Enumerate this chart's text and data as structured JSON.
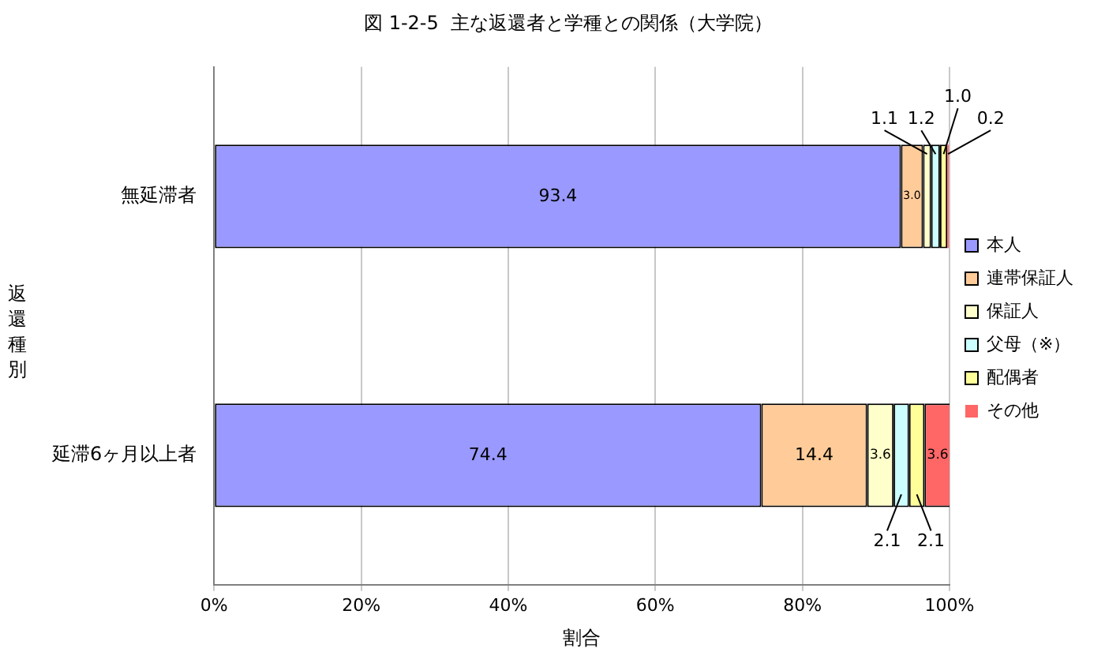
{
  "chart_data": {
    "type": "bar",
    "orientation": "horizontal",
    "stacked": true,
    "title": "図 1-2-5  主な返還者と学種との関係（大学院）",
    "xlabel": "割合",
    "ylabel": "返還種別",
    "categories": [
      "無延滞者",
      "延滞6ヶ月以上者"
    ],
    "series": [
      {
        "name": "本人",
        "color": "#9999ff",
        "values": [
          93.4,
          74.4
        ],
        "value_labels": [
          "93.4",
          "74.4"
        ]
      },
      {
        "name": "連帯保証人",
        "color": "#ffcc99",
        "values": [
          3.0,
          14.4
        ],
        "value_labels": [
          "3.0",
          "14.4"
        ]
      },
      {
        "name": "保証人",
        "color": "#ffffcc",
        "values": [
          1.1,
          3.6
        ],
        "value_labels": [
          "1.1",
          "3.6"
        ]
      },
      {
        "name": "父母（※）",
        "color": "#ccffff",
        "values": [
          1.2,
          2.1
        ],
        "value_labels": [
          "1.2",
          "2.1"
        ]
      },
      {
        "name": "配偶者",
        "color": "#ffff99",
        "values": [
          1.0,
          2.1
        ],
        "value_labels": [
          "1.0",
          "2.1"
        ]
      },
      {
        "name": "その他",
        "color": "#ff6666",
        "values": [
          0.2,
          3.6
        ],
        "value_labels": [
          "0.2",
          "3.6"
        ]
      }
    ],
    "xlim": [
      0,
      100
    ],
    "xticks": [
      {
        "value": 0,
        "label": "0%"
      },
      {
        "value": 20,
        "label": "20%"
      },
      {
        "value": 40,
        "label": "40%"
      },
      {
        "value": 60,
        "label": "60%"
      },
      {
        "value": 80,
        "label": "80%"
      },
      {
        "value": 100,
        "label": "100%"
      }
    ],
    "grid": "x",
    "legend": "right"
  }
}
